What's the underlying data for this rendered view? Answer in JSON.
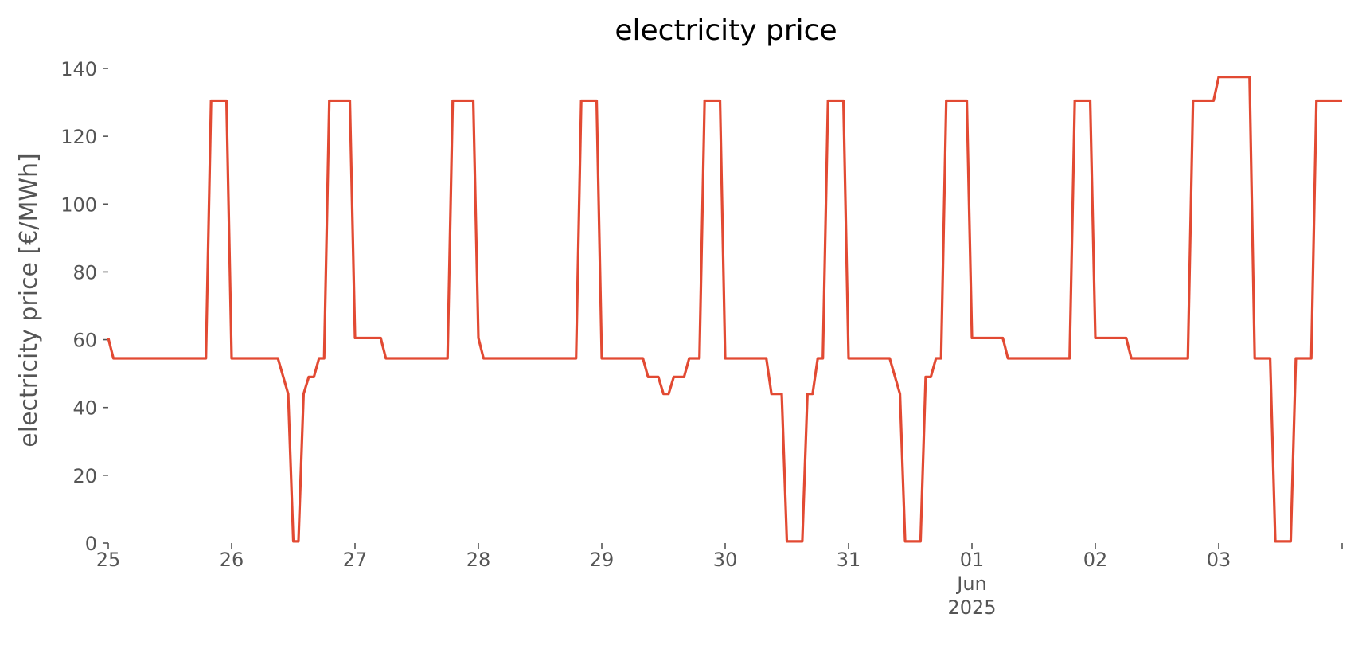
{
  "chart_data": {
    "type": "line",
    "title": "electricity price",
    "xlabel": "",
    "ylabel": "electricity price [€/MWh]",
    "grid": false,
    "ylim": [
      0,
      140
    ],
    "xlim": [
      "2025-05-25T00:00",
      "2025-06-04T00:00"
    ],
    "yticks": [
      0,
      20,
      40,
      60,
      80,
      100,
      120,
      140
    ],
    "xticks": [
      {
        "date": "2025-05-25T00:00",
        "label": "25",
        "sub": ""
      },
      {
        "date": "2025-05-26T00:00",
        "label": "26",
        "sub": ""
      },
      {
        "date": "2025-05-27T00:00",
        "label": "27",
        "sub": ""
      },
      {
        "date": "2025-05-28T00:00",
        "label": "28",
        "sub": ""
      },
      {
        "date": "2025-05-29T00:00",
        "label": "29",
        "sub": ""
      },
      {
        "date": "2025-05-30T00:00",
        "label": "30",
        "sub": ""
      },
      {
        "date": "2025-05-31T00:00",
        "label": "31",
        "sub": ""
      },
      {
        "date": "2025-06-01T00:00",
        "label": "01",
        "sub": "Jun",
        "sub2": "2025"
      },
      {
        "date": "2025-06-02T00:00",
        "label": "02",
        "sub": ""
      },
      {
        "date": "2025-06-03T00:00",
        "label": "03",
        "sub": ""
      },
      {
        "date": "2025-06-04T00:00",
        "label": "",
        "sub": ""
      }
    ],
    "series": [
      {
        "color": "#E24A33",
        "points": [
          [
            "2025-05-25T00:00",
            60.5
          ],
          [
            "2025-05-25T01:00",
            54.5
          ],
          [
            "2025-05-25T19:00",
            54.5
          ],
          [
            "2025-05-25T20:00",
            130.5
          ],
          [
            "2025-05-25T23:00",
            130.5
          ],
          [
            "2025-05-26T00:00",
            54.5
          ],
          [
            "2025-05-26T09:00",
            54.5
          ],
          [
            "2025-05-26T11:00",
            44
          ],
          [
            "2025-05-26T12:00",
            0.5
          ],
          [
            "2025-05-26T13:00",
            0.5
          ],
          [
            "2025-05-26T14:00",
            44
          ],
          [
            "2025-05-26T15:00",
            49
          ],
          [
            "2025-05-26T16:00",
            49
          ],
          [
            "2025-05-26T17:00",
            54.5
          ],
          [
            "2025-05-26T18:00",
            54.5
          ],
          [
            "2025-05-26T19:00",
            130.5
          ],
          [
            "2025-05-26T23:00",
            130.5
          ],
          [
            "2025-05-27T00:00",
            60.5
          ],
          [
            "2025-05-27T05:00",
            60.5
          ],
          [
            "2025-05-27T06:00",
            54.5
          ],
          [
            "2025-05-27T18:00",
            54.5
          ],
          [
            "2025-05-27T19:00",
            130.5
          ],
          [
            "2025-05-27T23:00",
            130.5
          ],
          [
            "2025-05-28T00:00",
            60.5
          ],
          [
            "2025-05-28T01:00",
            54.5
          ],
          [
            "2025-05-28T19:00",
            54.5
          ],
          [
            "2025-05-28T20:00",
            130.5
          ],
          [
            "2025-05-28T23:00",
            130.5
          ],
          [
            "2025-05-29T00:00",
            54.5
          ],
          [
            "2025-05-29T08:00",
            54.5
          ],
          [
            "2025-05-29T09:00",
            49
          ],
          [
            "2025-05-29T11:00",
            49
          ],
          [
            "2025-05-29T12:00",
            44
          ],
          [
            "2025-05-29T13:00",
            44
          ],
          [
            "2025-05-29T14:00",
            49
          ],
          [
            "2025-05-29T16:00",
            49
          ],
          [
            "2025-05-29T17:00",
            54.5
          ],
          [
            "2025-05-29T19:00",
            54.5
          ],
          [
            "2025-05-29T20:00",
            130.5
          ],
          [
            "2025-05-29T23:00",
            130.5
          ],
          [
            "2025-05-30T00:00",
            54.5
          ],
          [
            "2025-05-30T08:00",
            54.5
          ],
          [
            "2025-05-30T09:00",
            44
          ],
          [
            "2025-05-30T11:00",
            44
          ],
          [
            "2025-05-30T12:00",
            0.5
          ],
          [
            "2025-05-30T15:00",
            0.5
          ],
          [
            "2025-05-30T16:00",
            44
          ],
          [
            "2025-05-30T17:00",
            44
          ],
          [
            "2025-05-30T18:00",
            54.5
          ],
          [
            "2025-05-30T19:00",
            54.5
          ],
          [
            "2025-05-30T20:00",
            130.5
          ],
          [
            "2025-05-30T23:00",
            130.5
          ],
          [
            "2025-05-31T00:00",
            54.5
          ],
          [
            "2025-05-31T08:00",
            54.5
          ],
          [
            "2025-05-31T10:00",
            44
          ],
          [
            "2025-05-31T11:00",
            0.5
          ],
          [
            "2025-05-31T14:00",
            0.5
          ],
          [
            "2025-05-31T15:00",
            49
          ],
          [
            "2025-05-31T16:00",
            49
          ],
          [
            "2025-05-31T17:00",
            54.5
          ],
          [
            "2025-05-31T18:00",
            54.5
          ],
          [
            "2025-05-31T19:00",
            130.5
          ],
          [
            "2025-05-31T23:00",
            130.5
          ],
          [
            "2025-06-01T00:00",
            60.5
          ],
          [
            "2025-06-01T06:00",
            60.5
          ],
          [
            "2025-06-01T07:00",
            54.5
          ],
          [
            "2025-06-01T19:00",
            54.5
          ],
          [
            "2025-06-01T20:00",
            130.5
          ],
          [
            "2025-06-01T23:00",
            130.5
          ],
          [
            "2025-06-02T00:00",
            60.5
          ],
          [
            "2025-06-02T06:00",
            60.5
          ],
          [
            "2025-06-02T07:00",
            54.5
          ],
          [
            "2025-06-02T18:00",
            54.5
          ],
          [
            "2025-06-02T19:00",
            130.5
          ],
          [
            "2025-06-02T23:00",
            130.5
          ],
          [
            "2025-06-03T00:00",
            137.5
          ],
          [
            "2025-06-03T06:00",
            137.5
          ],
          [
            "2025-06-03T07:00",
            54.5
          ],
          [
            "2025-06-03T10:00",
            54.5
          ],
          [
            "2025-06-03T11:00",
            0.5
          ],
          [
            "2025-06-03T14:00",
            0.5
          ],
          [
            "2025-06-03T15:00",
            54.5
          ],
          [
            "2025-06-03T18:00",
            54.5
          ],
          [
            "2025-06-03T19:00",
            130.5
          ],
          [
            "2025-06-04T00:00",
            130.5
          ]
        ]
      }
    ]
  }
}
